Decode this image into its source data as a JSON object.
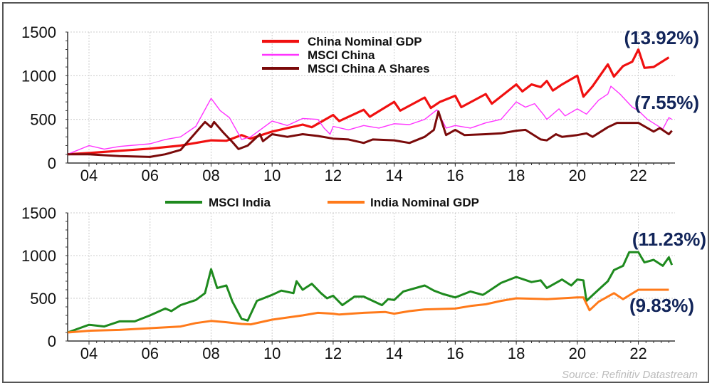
{
  "chart_data": [
    {
      "type": "line",
      "title": "",
      "xlabel": "",
      "ylabel": "",
      "ylim": [
        0,
        1500
      ],
      "xlim": [
        2003.3,
        2023.2
      ],
      "yticks": [
        "0",
        "500",
        "1000",
        "1500"
      ],
      "xticks": [
        {
          "x": 2004,
          "label": "04"
        },
        {
          "x": 2006,
          "label": "06"
        },
        {
          "x": 2008,
          "label": "08"
        },
        {
          "x": 2010,
          "label": "10"
        },
        {
          "x": 2012,
          "label": "12"
        },
        {
          "x": 2014,
          "label": "14"
        },
        {
          "x": 2016,
          "label": "16"
        },
        {
          "x": 2018,
          "label": "18"
        },
        {
          "x": 2020,
          "label": "20"
        },
        {
          "x": 2022,
          "label": "22"
        }
      ],
      "legend_position": "top-center",
      "annotations": [
        "(13.92%)",
        "(7.55%)"
      ],
      "series": [
        {
          "name": "China Nominal GDP",
          "color": "#f01010",
          "width": 3.2,
          "points": [
            [
              2003.3,
              100
            ],
            [
              2004,
              115
            ],
            [
              2005,
              140
            ],
            [
              2006,
              165
            ],
            [
              2007,
              200
            ],
            [
              2008,
              260
            ],
            [
              2008.5,
              255
            ],
            [
              2009,
              320
            ],
            [
              2009.3,
              280
            ],
            [
              2010,
              360
            ],
            [
              2011,
              440
            ],
            [
              2011.3,
              410
            ],
            [
              2012,
              550
            ],
            [
              2012.2,
              480
            ],
            [
              2013,
              610
            ],
            [
              2013.2,
              530
            ],
            [
              2014,
              700
            ],
            [
              2014.2,
              600
            ],
            [
              2015,
              750
            ],
            [
              2015.2,
              630
            ],
            [
              2015.5,
              700
            ],
            [
              2016,
              770
            ],
            [
              2016.2,
              640
            ],
            [
              2017,
              790
            ],
            [
              2017.2,
              680
            ],
            [
              2018,
              900
            ],
            [
              2018.2,
              820
            ],
            [
              2018.5,
              900
            ],
            [
              2018.8,
              870
            ],
            [
              2019,
              940
            ],
            [
              2019.2,
              830
            ],
            [
              2019.5,
              900
            ],
            [
              2020,
              1000
            ],
            [
              2020.2,
              760
            ],
            [
              2020.5,
              880
            ],
            [
              2021,
              1130
            ],
            [
              2021.2,
              990
            ],
            [
              2021.5,
              1110
            ],
            [
              2021.8,
              1160
            ],
            [
              2022,
              1300
            ],
            [
              2022.2,
              1090
            ],
            [
              2022.5,
              1100
            ],
            [
              2023,
              1210
            ]
          ]
        },
        {
          "name": "MSCI China",
          "color": "#ff33ff",
          "width": 1.4,
          "points": [
            [
              2003.3,
              100
            ],
            [
              2004,
              200
            ],
            [
              2004.5,
              160
            ],
            [
              2005,
              190
            ],
            [
              2006,
              220
            ],
            [
              2006.5,
              270
            ],
            [
              2007,
              300
            ],
            [
              2007.5,
              420
            ],
            [
              2008,
              740
            ],
            [
              2008.3,
              600
            ],
            [
              2008.6,
              520
            ],
            [
              2009,
              270
            ],
            [
              2009.3,
              300
            ],
            [
              2010,
              480
            ],
            [
              2010.5,
              430
            ],
            [
              2011,
              510
            ],
            [
              2011.5,
              500
            ],
            [
              2011.7,
              400
            ],
            [
              2011.9,
              330
            ],
            [
              2012,
              420
            ],
            [
              2012.5,
              380
            ],
            [
              2013,
              430
            ],
            [
              2013.5,
              400
            ],
            [
              2014,
              450
            ],
            [
              2014.5,
              440
            ],
            [
              2015,
              500
            ],
            [
              2015.4,
              610
            ],
            [
              2015.7,
              400
            ],
            [
              2016,
              430
            ],
            [
              2016.5,
              400
            ],
            [
              2017,
              460
            ],
            [
              2017.5,
              500
            ],
            [
              2018,
              700
            ],
            [
              2018.3,
              640
            ],
            [
              2018.6,
              680
            ],
            [
              2018.9,
              550
            ],
            [
              2019,
              500
            ],
            [
              2019.4,
              620
            ],
            [
              2019.6,
              540
            ],
            [
              2020,
              620
            ],
            [
              2020.3,
              560
            ],
            [
              2020.7,
              720
            ],
            [
              2021,
              790
            ],
            [
              2021.1,
              880
            ],
            [
              2021.4,
              790
            ],
            [
              2021.8,
              640
            ],
            [
              2022,
              600
            ],
            [
              2022.3,
              500
            ],
            [
              2022.8,
              390
            ],
            [
              2023,
              520
            ],
            [
              2023.1,
              500
            ]
          ]
        },
        {
          "name": "MSCI China A Shares",
          "color": "#7a0a0a",
          "width": 3,
          "points": [
            [
              2003.3,
              100
            ],
            [
              2004,
              100
            ],
            [
              2004.5,
              90
            ],
            [
              2005,
              80
            ],
            [
              2006,
              70
            ],
            [
              2006.5,
              100
            ],
            [
              2007,
              150
            ],
            [
              2007.5,
              350
            ],
            [
              2007.8,
              470
            ],
            [
              2008,
              410
            ],
            [
              2008.1,
              470
            ],
            [
              2008.4,
              350
            ],
            [
              2008.7,
              240
            ],
            [
              2008.9,
              160
            ],
            [
              2009.2,
              200
            ],
            [
              2009.6,
              330
            ],
            [
              2009.7,
              250
            ],
            [
              2010,
              330
            ],
            [
              2010.5,
              300
            ],
            [
              2011,
              330
            ],
            [
              2011.5,
              310
            ],
            [
              2012,
              280
            ],
            [
              2012.5,
              270
            ],
            [
              2013,
              230
            ],
            [
              2013.3,
              270
            ],
            [
              2014,
              260
            ],
            [
              2014.5,
              230
            ],
            [
              2015,
              300
            ],
            [
              2015.3,
              380
            ],
            [
              2015.45,
              590
            ],
            [
              2015.7,
              320
            ],
            [
              2016,
              380
            ],
            [
              2016.3,
              320
            ],
            [
              2017,
              330
            ],
            [
              2017.5,
              340
            ],
            [
              2018,
              370
            ],
            [
              2018.3,
              380
            ],
            [
              2018.8,
              270
            ],
            [
              2019,
              260
            ],
            [
              2019.3,
              330
            ],
            [
              2019.5,
              300
            ],
            [
              2020,
              320
            ],
            [
              2020.3,
              340
            ],
            [
              2020.5,
              300
            ],
            [
              2021,
              410
            ],
            [
              2021.3,
              460
            ],
            [
              2021.6,
              460
            ],
            [
              2022,
              460
            ],
            [
              2022.5,
              360
            ],
            [
              2022.7,
              400
            ],
            [
              2023,
              330
            ],
            [
              2023.1,
              370
            ]
          ]
        }
      ]
    },
    {
      "type": "line",
      "title": "",
      "xlabel": "",
      "ylabel": "",
      "ylim": [
        0,
        1500
      ],
      "xlim": [
        2003.3,
        2023.2
      ],
      "yticks": [
        "0",
        "500",
        "1000",
        "1500"
      ],
      "xticks": [
        {
          "x": 2004,
          "label": "04"
        },
        {
          "x": 2006,
          "label": "06"
        },
        {
          "x": 2008,
          "label": "08"
        },
        {
          "x": 2010,
          "label": "10"
        },
        {
          "x": 2012,
          "label": "12"
        },
        {
          "x": 2014,
          "label": "14"
        },
        {
          "x": 2016,
          "label": "16"
        },
        {
          "x": 2018,
          "label": "18"
        },
        {
          "x": 2020,
          "label": "20"
        },
        {
          "x": 2022,
          "label": "22"
        }
      ],
      "legend_position": "top",
      "annotations": [
        "(11.23%)",
        "(9.83%)"
      ],
      "series": [
        {
          "name": "MSCI India",
          "color": "#1e8a1e",
          "width": 3,
          "points": [
            [
              2003.3,
              100
            ],
            [
              2004,
              190
            ],
            [
              2004.5,
              170
            ],
            [
              2005,
              230
            ],
            [
              2005.5,
              230
            ],
            [
              2006,
              300
            ],
            [
              2006.5,
              380
            ],
            [
              2006.7,
              350
            ],
            [
              2007,
              420
            ],
            [
              2007.5,
              480
            ],
            [
              2007.8,
              560
            ],
            [
              2008,
              840
            ],
            [
              2008.2,
              620
            ],
            [
              2008.5,
              650
            ],
            [
              2008.7,
              460
            ],
            [
              2009,
              260
            ],
            [
              2009.2,
              240
            ],
            [
              2009.5,
              470
            ],
            [
              2010,
              540
            ],
            [
              2010.3,
              590
            ],
            [
              2010.7,
              560
            ],
            [
              2010.8,
              700
            ],
            [
              2011,
              600
            ],
            [
              2011.3,
              670
            ],
            [
              2011.6,
              560
            ],
            [
              2011.8,
              500
            ],
            [
              2012,
              530
            ],
            [
              2012.3,
              420
            ],
            [
              2012.7,
              520
            ],
            [
              2013,
              520
            ],
            [
              2013.3,
              470
            ],
            [
              2013.6,
              420
            ],
            [
              2013.8,
              490
            ],
            [
              2014,
              480
            ],
            [
              2014.3,
              580
            ],
            [
              2015,
              650
            ],
            [
              2015.3,
              590
            ],
            [
              2015.6,
              550
            ],
            [
              2016,
              510
            ],
            [
              2016.5,
              580
            ],
            [
              2016.9,
              540
            ],
            [
              2017,
              560
            ],
            [
              2017.5,
              680
            ],
            [
              2018,
              750
            ],
            [
              2018.5,
              690
            ],
            [
              2018.8,
              710
            ],
            [
              2019,
              620
            ],
            [
              2019.5,
              720
            ],
            [
              2019.8,
              650
            ],
            [
              2020,
              720
            ],
            [
              2020.2,
              710
            ],
            [
              2020.3,
              470
            ],
            [
              2020.6,
              570
            ],
            [
              2021,
              700
            ],
            [
              2021.2,
              830
            ],
            [
              2021.5,
              880
            ],
            [
              2021.7,
              1040
            ],
            [
              2022,
              1040
            ],
            [
              2022.2,
              920
            ],
            [
              2022.5,
              950
            ],
            [
              2022.8,
              880
            ],
            [
              2023,
              980
            ],
            [
              2023.1,
              890
            ]
          ]
        },
        {
          "name": "India Nominal GDP",
          "color": "#ff7a1a",
          "width": 3,
          "points": [
            [
              2003.3,
              100
            ],
            [
              2004,
              120
            ],
            [
              2005,
              130
            ],
            [
              2006,
              150
            ],
            [
              2007,
              170
            ],
            [
              2007.5,
              210
            ],
            [
              2008,
              235
            ],
            [
              2008.5,
              220
            ],
            [
              2009,
              200
            ],
            [
              2009.3,
              195
            ],
            [
              2010,
              250
            ],
            [
              2011,
              300
            ],
            [
              2011.5,
              330
            ],
            [
              2012,
              320
            ],
            [
              2012.2,
              310
            ],
            [
              2013,
              330
            ],
            [
              2013.7,
              340
            ],
            [
              2014,
              320
            ],
            [
              2014.5,
              350
            ],
            [
              2015,
              370
            ],
            [
              2016,
              380
            ],
            [
              2016.5,
              410
            ],
            [
              2017,
              430
            ],
            [
              2017.5,
              470
            ],
            [
              2018,
              500
            ],
            [
              2019,
              490
            ],
            [
              2019.5,
              500
            ],
            [
              2020,
              510
            ],
            [
              2020.2,
              510
            ],
            [
              2020.4,
              360
            ],
            [
              2020.7,
              460
            ],
            [
              2021,
              520
            ],
            [
              2021.2,
              560
            ],
            [
              2021.5,
              490
            ],
            [
              2022,
              600
            ],
            [
              2023,
              600
            ]
          ]
        }
      ]
    }
  ],
  "source": "Source: Refinitiv Datastream"
}
